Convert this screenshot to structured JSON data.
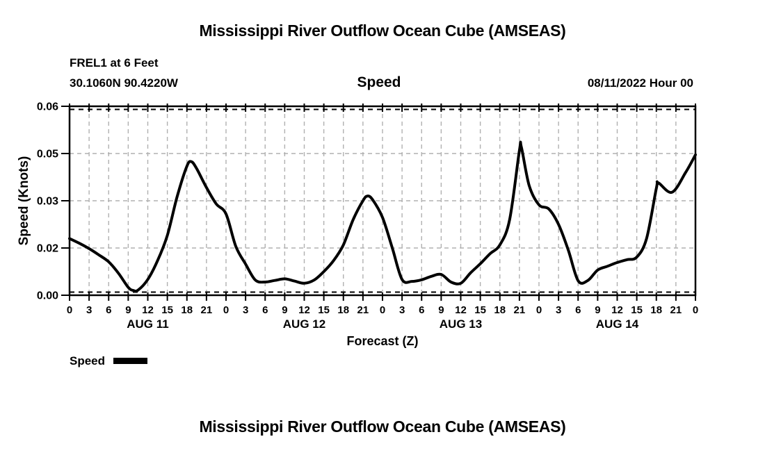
{
  "page": {
    "top_title": "Mississippi River Outflow Ocean Cube (AMSEAS)",
    "bottom_title": "Mississippi River Outflow Ocean Cube (AMSEAS)"
  },
  "header": {
    "station": "FREL1 at 6 Feet",
    "coordinates": "30.1060N  90.4220W",
    "variable": "Speed",
    "run_label": "08/11/2022 Hour 00"
  },
  "chart_data": {
    "type": "line",
    "title": "Speed",
    "xlabel": "Forecast (Z)",
    "ylabel": "Speed (Knots)",
    "ylim": [
      0,
      0.06
    ],
    "y_ticks": [
      {
        "value": 0.0,
        "label": "0.00"
      },
      {
        "value": 0.015,
        "label": "0.02"
      },
      {
        "value": 0.03,
        "label": "0.03"
      },
      {
        "value": 0.045,
        "label": "0.05"
      },
      {
        "value": 0.06,
        "label": "0.06"
      }
    ],
    "x_hours_range": [
      0,
      96
    ],
    "x_tick_step_hours": 3,
    "x_tick_labels": [
      "0",
      "3",
      "6",
      "9",
      "12",
      "15",
      "18",
      "21",
      "0",
      "3",
      "6",
      "9",
      "12",
      "15",
      "18",
      "21",
      "0",
      "3",
      "6",
      "9",
      "12",
      "15",
      "18",
      "21",
      "0",
      "3",
      "6",
      "9",
      "12",
      "15",
      "18",
      "21",
      "0"
    ],
    "date_labels": [
      {
        "label": "AUG 11",
        "center_hour": 12
      },
      {
        "label": "AUG 12",
        "center_hour": 36
      },
      {
        "label": "AUG 13",
        "center_hour": 60
      },
      {
        "label": "AUG 14",
        "center_hour": 84
      }
    ],
    "grid": true,
    "line_color": "#000000",
    "grid_color": "#b0b0b0",
    "legend": {
      "label": "Speed",
      "position": "bottom-left"
    },
    "series": [
      {
        "name": "Speed",
        "units": "Knots",
        "points": [
          [
            0,
            0.018
          ],
          [
            1.5,
            0.0165
          ],
          [
            3,
            0.0148
          ],
          [
            4.5,
            0.0128
          ],
          [
            6,
            0.0106
          ],
          [
            7.5,
            0.007
          ],
          [
            9,
            0.0025
          ],
          [
            9.8,
            0.0015
          ],
          [
            10.5,
            0.0016
          ],
          [
            12,
            0.005
          ],
          [
            13.5,
            0.011
          ],
          [
            15,
            0.019
          ],
          [
            16.5,
            0.0313
          ],
          [
            18,
            0.041
          ],
          [
            18.7,
            0.0424
          ],
          [
            19.5,
            0.0402
          ],
          [
            21,
            0.0342
          ],
          [
            22.5,
            0.029
          ],
          [
            24,
            0.0258
          ],
          [
            25.5,
            0.0155
          ],
          [
            27,
            0.0099
          ],
          [
            28.5,
            0.0048
          ],
          [
            30,
            0.0042
          ],
          [
            31.5,
            0.0047
          ],
          [
            33,
            0.0052
          ],
          [
            34.5,
            0.0045
          ],
          [
            36,
            0.0038
          ],
          [
            37.5,
            0.0048
          ],
          [
            39,
            0.0075
          ],
          [
            40.5,
            0.011
          ],
          [
            42,
            0.016
          ],
          [
            43.5,
            0.024
          ],
          [
            45,
            0.03
          ],
          [
            45.7,
            0.0315
          ],
          [
            46.5,
            0.0303
          ],
          [
            48,
            0.0247
          ],
          [
            49.5,
            0.015
          ],
          [
            51,
            0.005
          ],
          [
            52.5,
            0.0044
          ],
          [
            54,
            0.0049
          ],
          [
            55.5,
            0.006
          ],
          [
            57,
            0.0066
          ],
          [
            58.5,
            0.0042
          ],
          [
            60,
            0.0038
          ],
          [
            61.5,
            0.0071
          ],
          [
            63,
            0.01
          ],
          [
            64.5,
            0.0132
          ],
          [
            66,
            0.016
          ],
          [
            67.5,
            0.024
          ],
          [
            69,
            0.046
          ],
          [
            69.3,
            0.047
          ],
          [
            70.5,
            0.0348
          ],
          [
            72,
            0.0287
          ],
          [
            73.5,
            0.0274
          ],
          [
            75,
            0.0225
          ],
          [
            76.5,
            0.0143
          ],
          [
            78,
            0.0046
          ],
          [
            79.5,
            0.0047
          ],
          [
            81,
            0.008
          ],
          [
            82.5,
            0.0092
          ],
          [
            84,
            0.0104
          ],
          [
            85.5,
            0.0113
          ],
          [
            87,
            0.0121
          ],
          [
            88.5,
            0.018
          ],
          [
            90,
            0.034
          ],
          [
            90.3,
            0.0357
          ],
          [
            92.4,
            0.0327
          ],
          [
            94.5,
            0.039
          ],
          [
            96,
            0.0446
          ]
        ]
      }
    ]
  }
}
